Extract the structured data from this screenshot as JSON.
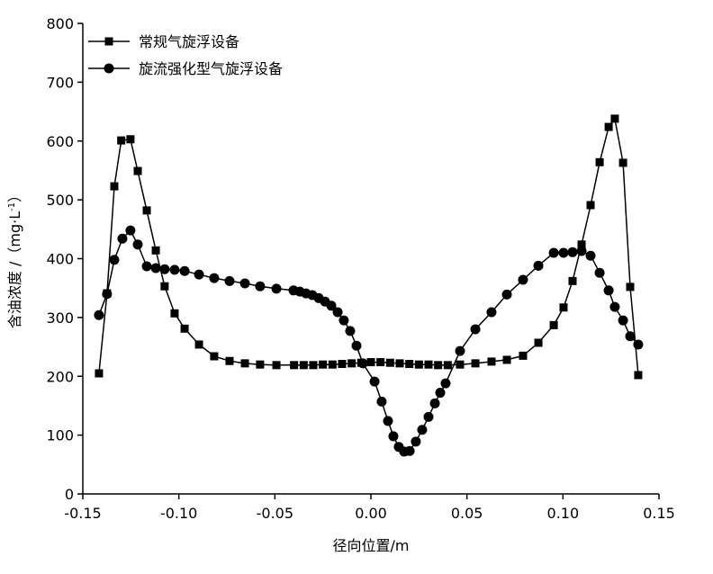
{
  "chart_data": {
    "type": "line",
    "x_label": "径向位置/m",
    "y_label": "含油浓度 /（mg·L",
    "y_label_sup": "-1",
    "y_label_end": "）",
    "xlim": [
      -0.15,
      0.15
    ],
    "xticks": [
      -0.15,
      {
        "value": -0.1,
        "label": "-0.10"
      },
      -0.05,
      {
        "value": 0,
        "label": "0.00"
      },
      0.05,
      {
        "value": 0.1,
        "label": "0.10"
      },
      0.15
    ],
    "ylim": [
      0,
      800
    ],
    "yticks": [
      0,
      100,
      200,
      300,
      400,
      500,
      600,
      700,
      800
    ],
    "legend": "upper left",
    "series": [
      {
        "name": "常规气旋浮设备",
        "color": "#000000",
        "marker": "square",
        "x": [
          -0.1416,
          -0.1374,
          -0.1336,
          -0.13,
          -0.1252,
          -0.1214,
          -0.1167,
          -0.112,
          -0.1074,
          -0.1022,
          -0.097,
          -0.0895,
          -0.0816,
          -0.0736,
          -0.0656,
          -0.0577,
          -0.0492,
          -0.04,
          -0.035,
          -0.03,
          -0.025,
          -0.02,
          -0.015,
          -0.01,
          -0.005,
          0,
          0.005,
          0.01,
          0.015,
          0.02,
          0.025,
          0.03,
          0.035,
          0.04,
          0.0464,
          0.0544,
          0.0628,
          0.0708,
          0.0792,
          0.0872,
          0.0952,
          0.1003,
          0.105,
          0.1097,
          0.1144,
          0.1191,
          0.1238,
          0.127,
          0.1313,
          0.135,
          0.1392
        ],
        "values": [
          205,
          341,
          523,
          601,
          603,
          549,
          482,
          414,
          353,
          307,
          281,
          254,
          234,
          226,
          222,
          220,
          219,
          219,
          219,
          219,
          220,
          220,
          221,
          222,
          223,
          224,
          224,
          223,
          222,
          221,
          220,
          220,
          219,
          219,
          220,
          222,
          225,
          228,
          235,
          257,
          287,
          317,
          362,
          424,
          491,
          564,
          624,
          638,
          563,
          352,
          202
        ]
      },
      {
        "name": "旋流强化型气旋浮设备",
        "color": "#000000",
        "marker": "circle",
        "x": [
          -0.1416,
          -0.1374,
          -0.1336,
          -0.1294,
          -0.1252,
          -0.1214,
          -0.1167,
          -0.112,
          -0.1074,
          -0.1022,
          -0.097,
          -0.0895,
          -0.0816,
          -0.0736,
          -0.0656,
          -0.0577,
          -0.0492,
          -0.0403,
          -0.037,
          -0.0338,
          -0.0305,
          -0.0272,
          -0.0239,
          -0.0206,
          -0.0173,
          -0.0141,
          -0.0108,
          -0.0075,
          -0.0042,
          0.0019,
          0.0056,
          0.0089,
          0.0117,
          0.0145,
          0.0173,
          0.0202,
          0.0234,
          0.0267,
          0.03,
          0.0333,
          0.0361,
          0.0389,
          0.0464,
          0.0544,
          0.0628,
          0.0708,
          0.0792,
          0.0872,
          0.0952,
          0.1003,
          0.105,
          0.1097,
          0.1144,
          0.1191,
          0.1238,
          0.127,
          0.1313,
          0.135,
          0.1392
        ],
        "values": [
          304,
          340,
          398,
          434,
          448,
          424,
          387,
          384,
          382,
          381,
          379,
          373,
          367,
          362,
          358,
          353,
          349,
          346,
          344,
          341,
          338,
          333,
          327,
          320,
          309,
          295,
          277,
          252,
          222,
          191,
          157,
          124,
          98,
          80,
          72,
          73,
          89,
          109,
          131,
          154,
          172,
          188,
          243,
          280,
          309,
          339,
          364,
          388,
          410,
          410,
          411,
          413,
          405,
          376,
          346,
          318,
          295,
          268,
          254
        ]
      }
    ]
  }
}
